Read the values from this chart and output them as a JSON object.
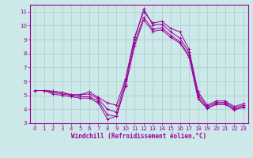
{
  "xlabel": "Windchill (Refroidissement éolien,°C)",
  "xlim": [
    -0.5,
    23.5
  ],
  "ylim": [
    3,
    11.5
  ],
  "yticks": [
    3,
    4,
    5,
    6,
    7,
    8,
    9,
    10,
    11
  ],
  "xticks": [
    0,
    1,
    2,
    3,
    4,
    5,
    6,
    7,
    8,
    9,
    10,
    11,
    12,
    13,
    14,
    15,
    16,
    17,
    18,
    19,
    20,
    21,
    22,
    23
  ],
  "bg_color": "#cce8e8",
  "grid_color": "#aacccc",
  "line_color": "#990099",
  "lines": [
    [
      5.35,
      5.35,
      5.3,
      5.2,
      5.05,
      5.05,
      5.25,
      4.85,
      4.45,
      4.3,
      6.2,
      9.2,
      11.0,
      10.2,
      10.3,
      9.8,
      9.55,
      8.3,
      5.25,
      4.3,
      4.6,
      4.6,
      4.2,
      4.4
    ],
    [
      5.35,
      5.35,
      5.3,
      5.2,
      5.05,
      5.05,
      5.1,
      4.75,
      4.0,
      3.8,
      6.05,
      9.05,
      11.2,
      10.05,
      10.1,
      9.55,
      9.1,
      8.1,
      5.05,
      4.2,
      4.5,
      4.5,
      4.1,
      4.3
    ],
    [
      5.35,
      5.35,
      5.2,
      5.1,
      5.0,
      4.9,
      4.9,
      4.6,
      3.6,
      3.5,
      5.75,
      8.75,
      10.6,
      9.75,
      9.85,
      9.3,
      8.85,
      7.9,
      4.85,
      4.1,
      4.4,
      4.4,
      4.0,
      4.2
    ],
    [
      5.35,
      5.35,
      5.1,
      5.0,
      4.9,
      4.8,
      4.8,
      4.45,
      3.3,
      3.5,
      5.65,
      8.55,
      10.4,
      9.6,
      9.7,
      9.15,
      8.75,
      7.75,
      4.75,
      4.05,
      4.35,
      4.35,
      3.95,
      4.15
    ]
  ]
}
